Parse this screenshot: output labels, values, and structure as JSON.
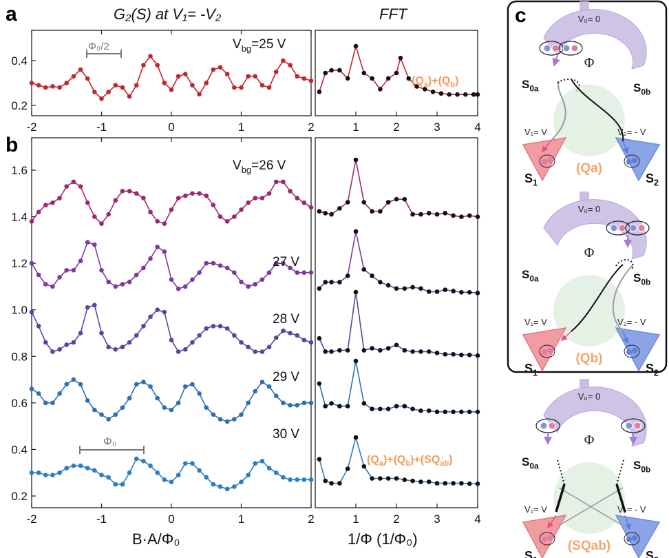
{
  "panels": {
    "a_letter": "a",
    "b_letter": "b",
    "c_letter": "c"
  },
  "titles": {
    "left": "G₂(S) at V₁= -V₂",
    "right": "FFT"
  },
  "axes": {
    "left_xlabel": "B·A/Φ₀",
    "right_xlabel": "1/Φ (1/Φ₀)",
    "left_xticks": [
      "-2",
      "-1",
      "0",
      "1",
      "2"
    ],
    "right_xticks": [
      "1",
      "2",
      "3",
      "4"
    ],
    "a_yticks": [
      "0.2",
      "0.4"
    ],
    "b_yticks": [
      "0.2",
      "0.4",
      "0.6",
      "0.8",
      "1.0",
      "1.2",
      "1.4",
      "1.6"
    ]
  },
  "annotations": {
    "a_period": "Φ₀/2",
    "b_period": "Φ₀",
    "a_fft_label": "(Qₐ)+(Qᵦ)",
    "b_fft_label": "(Qa)+(Qb)+(SQab)"
  },
  "vbg_labels": [
    "Vᵇᵍ=25 V",
    "Vᵇᵍ=26 V",
    "27 V",
    "28 V",
    "29 V",
    "30 V"
  ],
  "vbg_display": {
    "a": {
      "main": "V",
      "sub": "bg",
      "rest": "=25 V"
    },
    "b0": {
      "main": "V",
      "sub": "bg",
      "rest": "=26 V"
    }
  },
  "schematic": {
    "v0": "V₀= 0",
    "phi": "Φ",
    "s0a": "S0a",
    "s0b": "S0b",
    "s1": "S1",
    "s2": "S2",
    "v1": "V₁= V",
    "v2": "V₂= - V",
    "mech": [
      "(Qa)",
      "(Qb)",
      "(SQab)"
    ]
  },
  "chart_data": [
    {
      "type": "line",
      "panel": "a",
      "title": "G₂(S) at V₁= -V₂",
      "xlim": [
        -2,
        2
      ],
      "ylim": [
        0.17,
        0.48
      ],
      "series": [
        {
          "name": "Vbg=25 V",
          "color": "#c0272d",
          "x": [
            -2.0,
            -1.9,
            -1.8,
            -1.7,
            -1.6,
            -1.5,
            -1.4,
            -1.3,
            -1.2,
            -1.1,
            -1.0,
            -0.9,
            -0.8,
            -0.7,
            -0.6,
            -0.5,
            -0.4,
            -0.3,
            -0.2,
            -0.1,
            0.0,
            0.1,
            0.2,
            0.3,
            0.4,
            0.5,
            0.6,
            0.7,
            0.8,
            0.9,
            1.0,
            1.1,
            1.2,
            1.3,
            1.4,
            1.5,
            1.6,
            1.7,
            1.8,
            1.9,
            2.0
          ],
          "y": [
            0.3,
            0.29,
            0.28,
            0.285,
            0.28,
            0.3,
            0.33,
            0.36,
            0.32,
            0.26,
            0.23,
            0.26,
            0.29,
            0.28,
            0.24,
            0.29,
            0.38,
            0.42,
            0.38,
            0.3,
            0.27,
            0.33,
            0.34,
            0.29,
            0.25,
            0.3,
            0.36,
            0.37,
            0.34,
            0.28,
            0.28,
            0.33,
            0.33,
            0.29,
            0.28,
            0.35,
            0.4,
            0.38,
            0.33,
            0.32,
            0.31
          ]
        }
      ]
    },
    {
      "type": "line",
      "panel": "a-fft",
      "title": "FFT",
      "xlim": [
        0,
        4
      ],
      "series": [
        {
          "name": "FFT 25 V",
          "color": "#c0272d",
          "x": [
            0.1,
            0.25,
            0.4,
            0.6,
            0.8,
            1.0,
            1.2,
            1.4,
            1.6,
            1.8,
            2.0,
            2.1,
            2.3,
            2.5,
            2.7,
            2.9,
            3.1,
            3.3,
            3.5,
            3.7,
            3.9,
            4.0
          ],
          "y": [
            0.15,
            0.5,
            0.55,
            0.55,
            0.4,
            1.0,
            0.5,
            0.4,
            0.2,
            0.4,
            0.5,
            0.78,
            0.4,
            0.25,
            0.2,
            0.15,
            0.12,
            0.1,
            0.1,
            0.1,
            0.1,
            0.1
          ]
        }
      ]
    },
    {
      "type": "line",
      "panel": "b",
      "xlabel": "B·A/Φ₀",
      "xlim": [
        -2,
        2
      ],
      "ylim": [
        0.15,
        1.72
      ],
      "series": [
        {
          "name": "26 V",
          "color": "#9c2770",
          "x": [
            -2.0,
            -1.9,
            -1.8,
            -1.7,
            -1.6,
            -1.5,
            -1.4,
            -1.3,
            -1.2,
            -1.1,
            -1.0,
            -0.9,
            -0.8,
            -0.7,
            -0.6,
            -0.5,
            -0.4,
            -0.3,
            -0.2,
            -0.1,
            0.0,
            0.1,
            0.2,
            0.3,
            0.4,
            0.5,
            0.6,
            0.7,
            0.8,
            0.9,
            1.0,
            1.1,
            1.2,
            1.3,
            1.4,
            1.5,
            1.6,
            1.7,
            1.8,
            1.9,
            2.0
          ],
          "y": [
            1.38,
            1.42,
            1.45,
            1.46,
            1.48,
            1.53,
            1.55,
            1.53,
            1.46,
            1.4,
            1.37,
            1.41,
            1.47,
            1.51,
            1.51,
            1.5,
            1.48,
            1.42,
            1.38,
            1.37,
            1.43,
            1.48,
            1.49,
            1.5,
            1.5,
            1.49,
            1.45,
            1.4,
            1.38,
            1.4,
            1.43,
            1.46,
            1.48,
            1.48,
            1.5,
            1.55,
            1.55,
            1.51,
            1.48,
            1.46,
            1.44
          ]
        },
        {
          "name": "27 V",
          "color": "#7d3a9e",
          "x": [
            -2.0,
            -1.9,
            -1.8,
            -1.7,
            -1.6,
            -1.5,
            -1.4,
            -1.3,
            -1.2,
            -1.1,
            -1.0,
            -0.9,
            -0.8,
            -0.7,
            -0.6,
            -0.5,
            -0.4,
            -0.3,
            -0.2,
            -0.1,
            0.0,
            0.1,
            0.2,
            0.3,
            0.4,
            0.5,
            0.6,
            0.7,
            0.8,
            0.9,
            1.0,
            1.1,
            1.2,
            1.3,
            1.4,
            1.5,
            1.6,
            1.7,
            1.8,
            1.9,
            2.0
          ],
          "y": [
            1.2,
            1.15,
            1.11,
            1.1,
            1.14,
            1.17,
            1.17,
            1.21,
            1.29,
            1.28,
            1.17,
            1.12,
            1.1,
            1.11,
            1.12,
            1.15,
            1.18,
            1.22,
            1.27,
            1.25,
            1.13,
            1.09,
            1.1,
            1.13,
            1.16,
            1.2,
            1.2,
            1.19,
            1.18,
            1.16,
            1.12,
            1.1,
            1.11,
            1.13,
            1.16,
            1.2,
            1.2,
            1.18,
            1.16,
            1.16,
            1.16
          ]
        },
        {
          "name": "28 V",
          "color": "#4e4aa0",
          "x": [
            -2.0,
            -1.9,
            -1.8,
            -1.7,
            -1.6,
            -1.5,
            -1.4,
            -1.3,
            -1.2,
            -1.1,
            -1.0,
            -0.9,
            -0.8,
            -0.7,
            -0.6,
            -0.5,
            -0.4,
            -0.3,
            -0.2,
            -0.1,
            0.0,
            0.1,
            0.2,
            0.3,
            0.4,
            0.5,
            0.6,
            0.7,
            0.8,
            0.9,
            1.0,
            1.1,
            1.2,
            1.3,
            1.4,
            1.5,
            1.6,
            1.7,
            1.8,
            1.9,
            2.0
          ],
          "y": [
            0.99,
            0.93,
            0.86,
            0.82,
            0.83,
            0.85,
            0.86,
            0.9,
            1.01,
            1.02,
            0.9,
            0.84,
            0.83,
            0.84,
            0.86,
            0.89,
            0.93,
            0.97,
            1.0,
            0.99,
            0.87,
            0.82,
            0.83,
            0.86,
            0.89,
            0.92,
            0.93,
            0.93,
            0.92,
            0.89,
            0.86,
            0.84,
            0.82,
            0.82,
            0.84,
            0.88,
            0.91,
            0.9,
            0.89,
            0.87,
            0.86
          ]
        },
        {
          "name": "29 V",
          "color": "#2d6fb3",
          "x": [
            -2.0,
            -1.9,
            -1.8,
            -1.7,
            -1.6,
            -1.5,
            -1.4,
            -1.3,
            -1.2,
            -1.1,
            -1.0,
            -0.9,
            -0.8,
            -0.7,
            -0.6,
            -0.5,
            -0.4,
            -0.3,
            -0.2,
            -0.1,
            0.0,
            0.1,
            0.2,
            0.3,
            0.4,
            0.5,
            0.6,
            0.7,
            0.8,
            0.9,
            1.0,
            1.1,
            1.2,
            1.3,
            1.4,
            1.5,
            1.6,
            1.7,
            1.8,
            1.9,
            2.0
          ],
          "y": [
            0.66,
            0.64,
            0.6,
            0.6,
            0.64,
            0.68,
            0.7,
            0.68,
            0.61,
            0.57,
            0.55,
            0.53,
            0.55,
            0.58,
            0.62,
            0.68,
            0.69,
            0.67,
            0.62,
            0.58,
            0.57,
            0.6,
            0.67,
            0.68,
            0.64,
            0.58,
            0.55,
            0.53,
            0.52,
            0.53,
            0.55,
            0.6,
            0.65,
            0.69,
            0.67,
            0.63,
            0.6,
            0.59,
            0.59,
            0.6,
            0.6
          ]
        },
        {
          "name": "30 V",
          "color": "#2b7dc0",
          "x": [
            -2.0,
            -1.9,
            -1.8,
            -1.7,
            -1.6,
            -1.5,
            -1.4,
            -1.3,
            -1.2,
            -1.1,
            -1.0,
            -0.9,
            -0.8,
            -0.7,
            -0.6,
            -0.5,
            -0.4,
            -0.3,
            -0.2,
            -0.1,
            0.0,
            0.1,
            0.2,
            0.3,
            0.4,
            0.5,
            0.6,
            0.7,
            0.8,
            0.9,
            1.0,
            1.1,
            1.2,
            1.3,
            1.4,
            1.5,
            1.6,
            1.7,
            1.8,
            1.9,
            2.0
          ],
          "y": [
            0.3,
            0.3,
            0.29,
            0.29,
            0.3,
            0.32,
            0.33,
            0.33,
            0.32,
            0.31,
            0.29,
            0.28,
            0.25,
            0.25,
            0.3,
            0.36,
            0.35,
            0.33,
            0.3,
            0.27,
            0.26,
            0.29,
            0.34,
            0.34,
            0.31,
            0.28,
            0.25,
            0.24,
            0.23,
            0.24,
            0.26,
            0.29,
            0.34,
            0.35,
            0.32,
            0.3,
            0.28,
            0.27,
            0.27,
            0.27,
            0.27
          ]
        }
      ]
    },
    {
      "type": "line",
      "panel": "b-fft",
      "xlabel": "1/Φ (1/Φ₀)",
      "xlim": [
        0,
        4
      ],
      "series": [
        {
          "name": "FFT 26 V",
          "color": "#9c2770",
          "x": [
            0.1,
            0.25,
            0.4,
            0.6,
            0.8,
            1.0,
            1.2,
            1.4,
            1.6,
            1.8,
            2.0,
            2.2,
            2.4,
            2.6,
            2.8,
            3.0,
            3.2,
            3.4,
            3.6,
            3.8,
            4.0
          ],
          "y": [
            0.15,
            0.12,
            0.1,
            0.2,
            0.3,
            1.0,
            0.3,
            0.15,
            0.15,
            0.3,
            0.35,
            0.35,
            0.1,
            0.1,
            0.12,
            0.1,
            0.12,
            0.08,
            0.06,
            0.08,
            0.06
          ]
        },
        {
          "name": "FFT 27 V",
          "color": "#7d3a9e",
          "x": [
            0.1,
            0.25,
            0.4,
            0.6,
            0.8,
            1.0,
            1.2,
            1.4,
            1.6,
            1.8,
            2.0,
            2.2,
            2.4,
            2.6,
            2.8,
            3.0,
            3.2,
            3.4,
            3.6,
            3.8,
            4.0
          ],
          "y": [
            0.1,
            0.2,
            0.2,
            0.2,
            0.3,
            1.0,
            0.4,
            0.3,
            0.2,
            0.15,
            0.1,
            0.1,
            0.12,
            0.1,
            0.05,
            0.05,
            0.08,
            0.06,
            0.04,
            0.04,
            0.03
          ]
        },
        {
          "name": "FFT 28 V",
          "color": "#4e4aa0",
          "x": [
            0.1,
            0.25,
            0.4,
            0.6,
            0.8,
            1.0,
            1.2,
            1.4,
            1.6,
            1.8,
            2.0,
            2.2,
            2.4,
            2.6,
            2.8,
            3.0,
            3.2,
            3.4,
            3.6,
            3.8,
            4.0
          ],
          "y": [
            0.3,
            0.1,
            0.1,
            0.12,
            0.12,
            1.0,
            0.12,
            0.15,
            0.12,
            0.15,
            0.2,
            0.12,
            0.1,
            0.1,
            0.1,
            0.08,
            0.06,
            0.06,
            0.05,
            0.05,
            0.04
          ]
        },
        {
          "name": "FFT 29 V",
          "color": "#2d6fb3",
          "x": [
            0.1,
            0.25,
            0.4,
            0.6,
            0.8,
            1.0,
            1.2,
            1.4,
            1.6,
            1.8,
            2.0,
            2.2,
            2.4,
            2.6,
            2.8,
            3.0,
            3.2,
            3.4,
            3.6,
            3.8,
            4.0
          ],
          "y": [
            0.6,
            0.2,
            0.25,
            0.2,
            0.2,
            1.0,
            0.25,
            0.15,
            0.15,
            0.15,
            0.2,
            0.2,
            0.15,
            0.12,
            0.12,
            0.1,
            0.1,
            0.1,
            0.1,
            0.1,
            0.1
          ]
        },
        {
          "name": "FFT 30 V",
          "color": "#2b7dc0",
          "x": [
            0.1,
            0.25,
            0.4,
            0.6,
            0.8,
            1.0,
            1.2,
            1.4,
            1.6,
            1.8,
            2.0,
            2.2,
            2.4,
            2.6,
            2.8,
            3.0,
            3.2,
            3.4,
            3.6,
            3.8,
            4.0
          ],
          "y": [
            0.55,
            0.1,
            0.05,
            0.05,
            0.35,
            1.0,
            0.4,
            0.15,
            0.15,
            0.15,
            0.15,
            0.12,
            0.1,
            0.08,
            0.08,
            0.05,
            0.05,
            0.05,
            0.05,
            0.04,
            0.04
          ]
        }
      ]
    }
  ]
}
